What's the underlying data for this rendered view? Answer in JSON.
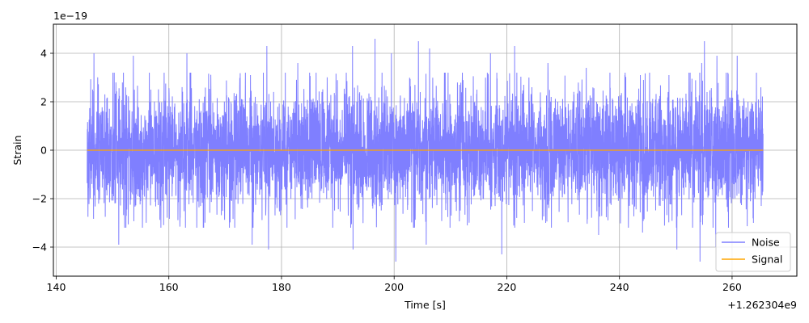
{
  "chart_data": {
    "type": "line",
    "title": "",
    "xlabel": "Time [s]",
    "ylabel": "Strain",
    "x_offset_text": "+1.262304e9",
    "y_scale_text": "1e−19",
    "xlim": [
      139.5,
      271.5
    ],
    "ylim": [
      -5.2,
      5.2
    ],
    "x_ticks": [
      140,
      160,
      180,
      200,
      220,
      240,
      260
    ],
    "x_tick_labels": [
      "140",
      "160",
      "180",
      "200",
      "220",
      "240",
      "260"
    ],
    "y_ticks": [
      -4,
      -2,
      0,
      2,
      4
    ],
    "y_tick_labels": [
      "−4",
      "−2",
      "0",
      "2",
      "4"
    ],
    "grid": true,
    "legend_position": "bottom-right",
    "series": [
      {
        "name": "Noise",
        "color": "#7f7fff",
        "x_range": [
          145.5,
          265.5
        ],
        "envelope_peaks": [
          [
            146.7,
            4.0
          ],
          [
            150.6,
            2.8
          ],
          [
            153.7,
            3.9
          ],
          [
            163.2,
            4.0
          ],
          [
            174.5,
            3.1
          ],
          [
            177.4,
            4.3
          ],
          [
            182.9,
            3.6
          ],
          [
            192.6,
            4.3
          ],
          [
            196.6,
            4.6
          ],
          [
            199.5,
            4.0
          ],
          [
            204.3,
            4.5
          ],
          [
            206.3,
            4.2
          ],
          [
            211.6,
            2.7
          ],
          [
            217.1,
            4.0
          ],
          [
            221.4,
            4.3
          ],
          [
            227.3,
            3.6
          ],
          [
            234.1,
            3.4
          ],
          [
            243.7,
            3.1
          ],
          [
            248.8,
            3.1
          ],
          [
            254.6,
            3.6
          ],
          [
            255.1,
            4.5
          ],
          [
            257.3,
            3.9
          ],
          [
            260.9,
            3.9
          ]
        ],
        "envelope_troughs": [
          [
            151.1,
            -3.9
          ],
          [
            155.3,
            -3.2
          ],
          [
            174.8,
            -3.9
          ],
          [
            177.7,
            -4.1
          ],
          [
            192.7,
            -4.1
          ],
          [
            200.3,
            -4.6
          ],
          [
            205.7,
            -3.9
          ],
          [
            219.1,
            -4.3
          ],
          [
            236.3,
            -3.5
          ],
          [
            244.1,
            -3.4
          ],
          [
            250.2,
            -4.1
          ],
          [
            254.3,
            -4.6
          ],
          [
            257.1,
            -4.0
          ],
          [
            263.8,
            -3.0
          ]
        ],
        "typical_amplitude": 2.0
      },
      {
        "name": "Signal",
        "color": "#ffa500",
        "x": [
          145.5,
          265.5
        ],
        "y": [
          0,
          0
        ]
      }
    ]
  }
}
